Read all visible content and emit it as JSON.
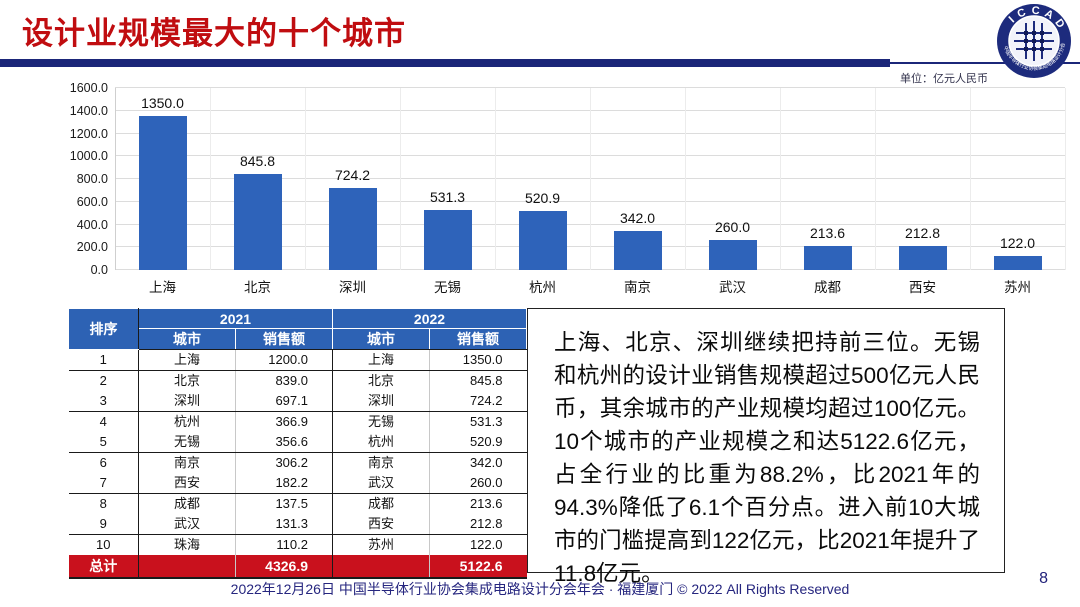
{
  "page": {
    "title": "设计业规模最大的十个城市",
    "unit_label": "单位：亿元人民币",
    "footer": "2022年12月26日 中国半导体行业协会集成电路设计分会年会 · 福建厦门 © 2022 All Rights Reserved",
    "page_number": "8",
    "logo": {
      "text": "I C C A D",
      "ring_text": "中国半导体行业协会集成电路设计分会"
    }
  },
  "chart_data": {
    "type": "bar",
    "title": "",
    "unit": "亿元人民币",
    "categories": [
      "上海",
      "北京",
      "深圳",
      "无锡",
      "杭州",
      "南京",
      "武汉",
      "成都",
      "西安",
      "苏州"
    ],
    "values": [
      1350.0,
      845.8,
      724.2,
      531.3,
      520.9,
      342.0,
      260.0,
      213.6,
      212.8,
      122.0
    ],
    "value_labels": [
      "1350.0",
      "845.8",
      "724.2",
      "531.3",
      "520.9",
      "342.0",
      "260.0",
      "213.6",
      "212.8",
      "122.0"
    ],
    "y_ticks": [
      "0.0",
      "200.0",
      "400.0",
      "600.0",
      "800.0",
      "1000.0",
      "1200.0",
      "1400.0",
      "1600.0"
    ],
    "ylim": [
      0,
      1600
    ],
    "grid": true,
    "legend": false,
    "bar_color": "#2e63ba"
  },
  "table": {
    "header": {
      "rank": "排序",
      "year1": "2021",
      "year2": "2022",
      "city": "城市",
      "sales": "销售额"
    },
    "rows": [
      [
        "1",
        "上海",
        "1200.0",
        "上海",
        "1350.0"
      ],
      [
        "2",
        "北京",
        "839.0",
        "北京",
        "845.8"
      ],
      [
        "3",
        "深圳",
        "697.1",
        "深圳",
        "724.2"
      ],
      [
        "4",
        "杭州",
        "366.9",
        "无锡",
        "531.3"
      ],
      [
        "5",
        "无锡",
        "356.6",
        "杭州",
        "520.9"
      ],
      [
        "6",
        "南京",
        "306.2",
        "南京",
        "342.0"
      ],
      [
        "7",
        "西安",
        "182.2",
        "武汉",
        "260.0"
      ],
      [
        "8",
        "成都",
        "137.5",
        "成都",
        "213.6"
      ],
      [
        "9",
        "武汉",
        "131.3",
        "西安",
        "212.8"
      ],
      [
        "10",
        "珠海",
        "110.2",
        "苏州",
        "122.0"
      ]
    ],
    "total": {
      "label": "总计",
      "sales2021": "4326.9",
      "sales2022": "5122.6"
    }
  },
  "commentary": {
    "text": "上海、北京、深圳继续把持前三位。无锡和杭州的设计业销售规模超过500亿元人民币，其余城市的产业规模均超过100亿元。10个城市的产业规模之和达5122.6亿元，占全行业的比重为88.2%，比2021年的94.3%降低了6.1个百分点。进入前10大城市的门槛提高到122亿元，比2021年提升了11.8亿元。"
  },
  "colors": {
    "title_red": "#c00d10",
    "rule_navy": "#1b2679",
    "bar_blue": "#2e63ba",
    "table_header_blue": "#2d62b4",
    "total_row_red": "#c9111d",
    "footer_indigo": "#26267f"
  }
}
